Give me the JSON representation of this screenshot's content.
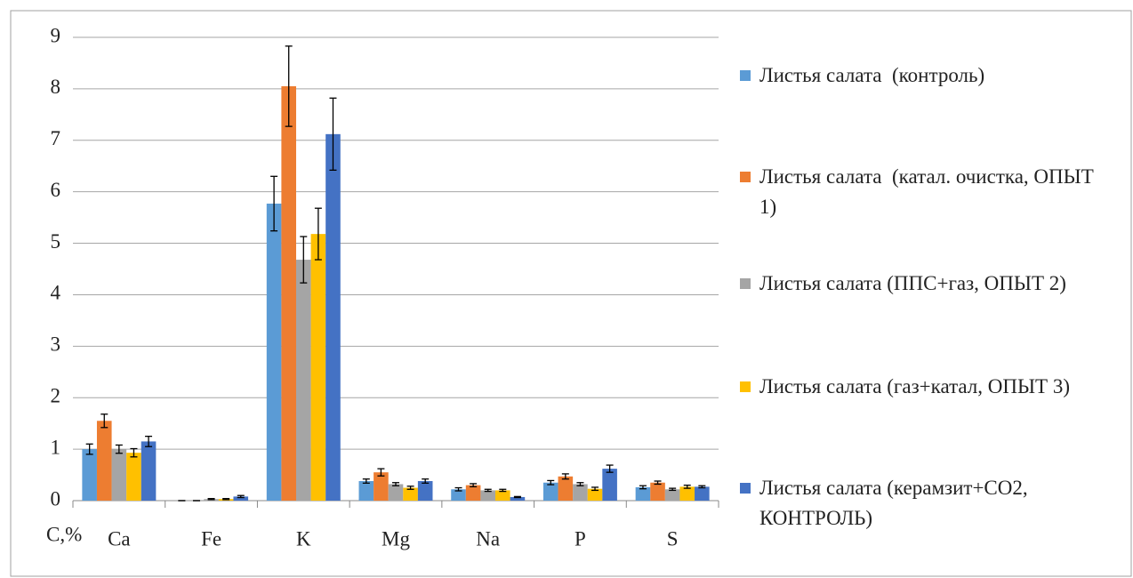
{
  "chart_data": {
    "type": "bar",
    "y_label": "C,%",
    "categories": [
      "Ca",
      "Fe",
      "K",
      "Mg",
      "Na",
      "P",
      "S"
    ],
    "series": [
      {
        "name": "Листья салата  (контроль)",
        "color": "#5b9bd5",
        "values": [
          1.0,
          0,
          5.77,
          0.38,
          0.22,
          0.35,
          0.26
        ],
        "errors": [
          0.1,
          0,
          0.53,
          0.04,
          0.03,
          0.04,
          0.03
        ]
      },
      {
        "name": "Листья салата  (катал. очистка, ОПЫТ 1)",
        "color": "#ed7d31",
        "values": [
          1.55,
          0,
          8.05,
          0.55,
          0.3,
          0.47,
          0.35
        ],
        "errors": [
          0.13,
          0,
          0.78,
          0.07,
          0.03,
          0.05,
          0.03
        ]
      },
      {
        "name": "Листья салата (ППС+газ, ОПЫТ 2)",
        "color": "#a5a5a5",
        "values": [
          1.0,
          0.03,
          4.68,
          0.32,
          0.2,
          0.32,
          0.22
        ],
        "errors": [
          0.08,
          0.01,
          0.45,
          0.03,
          0.02,
          0.03,
          0.02
        ]
      },
      {
        "name": "Листья салата (газ+катал, ОПЫТ 3)",
        "color": "#ffc000",
        "values": [
          0.93,
          0.03,
          5.18,
          0.25,
          0.2,
          0.23,
          0.27
        ],
        "errors": [
          0.08,
          0.01,
          0.5,
          0.03,
          0.02,
          0.03,
          0.03
        ]
      },
      {
        "name": "Листья салата (керамзит+CO2, КОНТРОЛЬ)",
        "color": "#4472c4",
        "values": [
          1.15,
          0.08,
          7.12,
          0.38,
          0.07,
          0.62,
          0.27
        ],
        "errors": [
          0.1,
          0.02,
          0.7,
          0.04,
          0.01,
          0.07,
          0.02
        ]
      }
    ],
    "ylim": [
      0,
      9
    ],
    "yticks": [
      0,
      1,
      2,
      3,
      4,
      5,
      6,
      7,
      8,
      9
    ],
    "grid": true,
    "legend": "right"
  }
}
